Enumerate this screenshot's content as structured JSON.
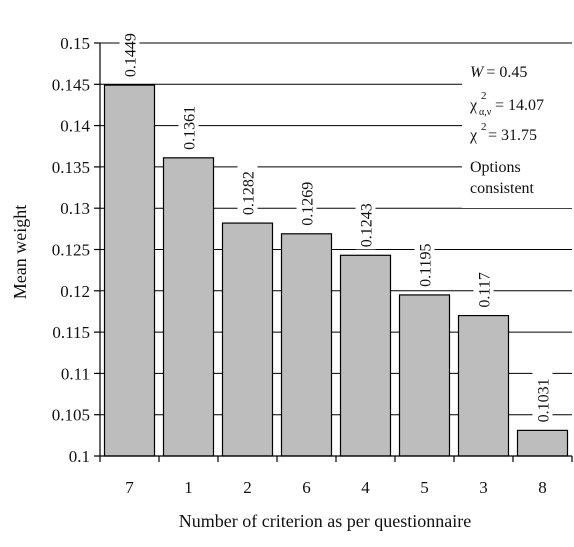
{
  "chart_data": {
    "type": "bar",
    "categories": [
      "7",
      "1",
      "2",
      "6",
      "4",
      "5",
      "3",
      "8"
    ],
    "values": [
      0.1449,
      0.1361,
      0.1282,
      0.1269,
      0.1243,
      0.1195,
      0.117,
      0.1031
    ],
    "value_labels": [
      "0.1449",
      "0.1361",
      "0.1282",
      "0.1269",
      "0.1243",
      "0.1195",
      "0.117",
      "0.1031"
    ],
    "xlabel": "Number of criterion as per questionnaire",
    "ylabel": "Mean weight",
    "ylim": [
      0.1,
      0.15
    ],
    "yticks": [
      "0.1",
      "0.105",
      "0.11",
      "0.115",
      "0.12",
      "0.125",
      "0.13",
      "0.135",
      "0.14",
      "0.145",
      "0.15"
    ],
    "grid": true,
    "bar_color": "#bdbdbd",
    "annotations": {
      "W_symbol": "W",
      "W_value": "= 0.45",
      "chi": "χ",
      "chi_crit_sup": "2",
      "chi_crit_sub": "α,ν",
      "chi_crit_value": "= 14.07",
      "chi_sup": "2",
      "chi_value": "= 31.75",
      "options_line1": "Options",
      "options_line2": "consistent"
    }
  }
}
